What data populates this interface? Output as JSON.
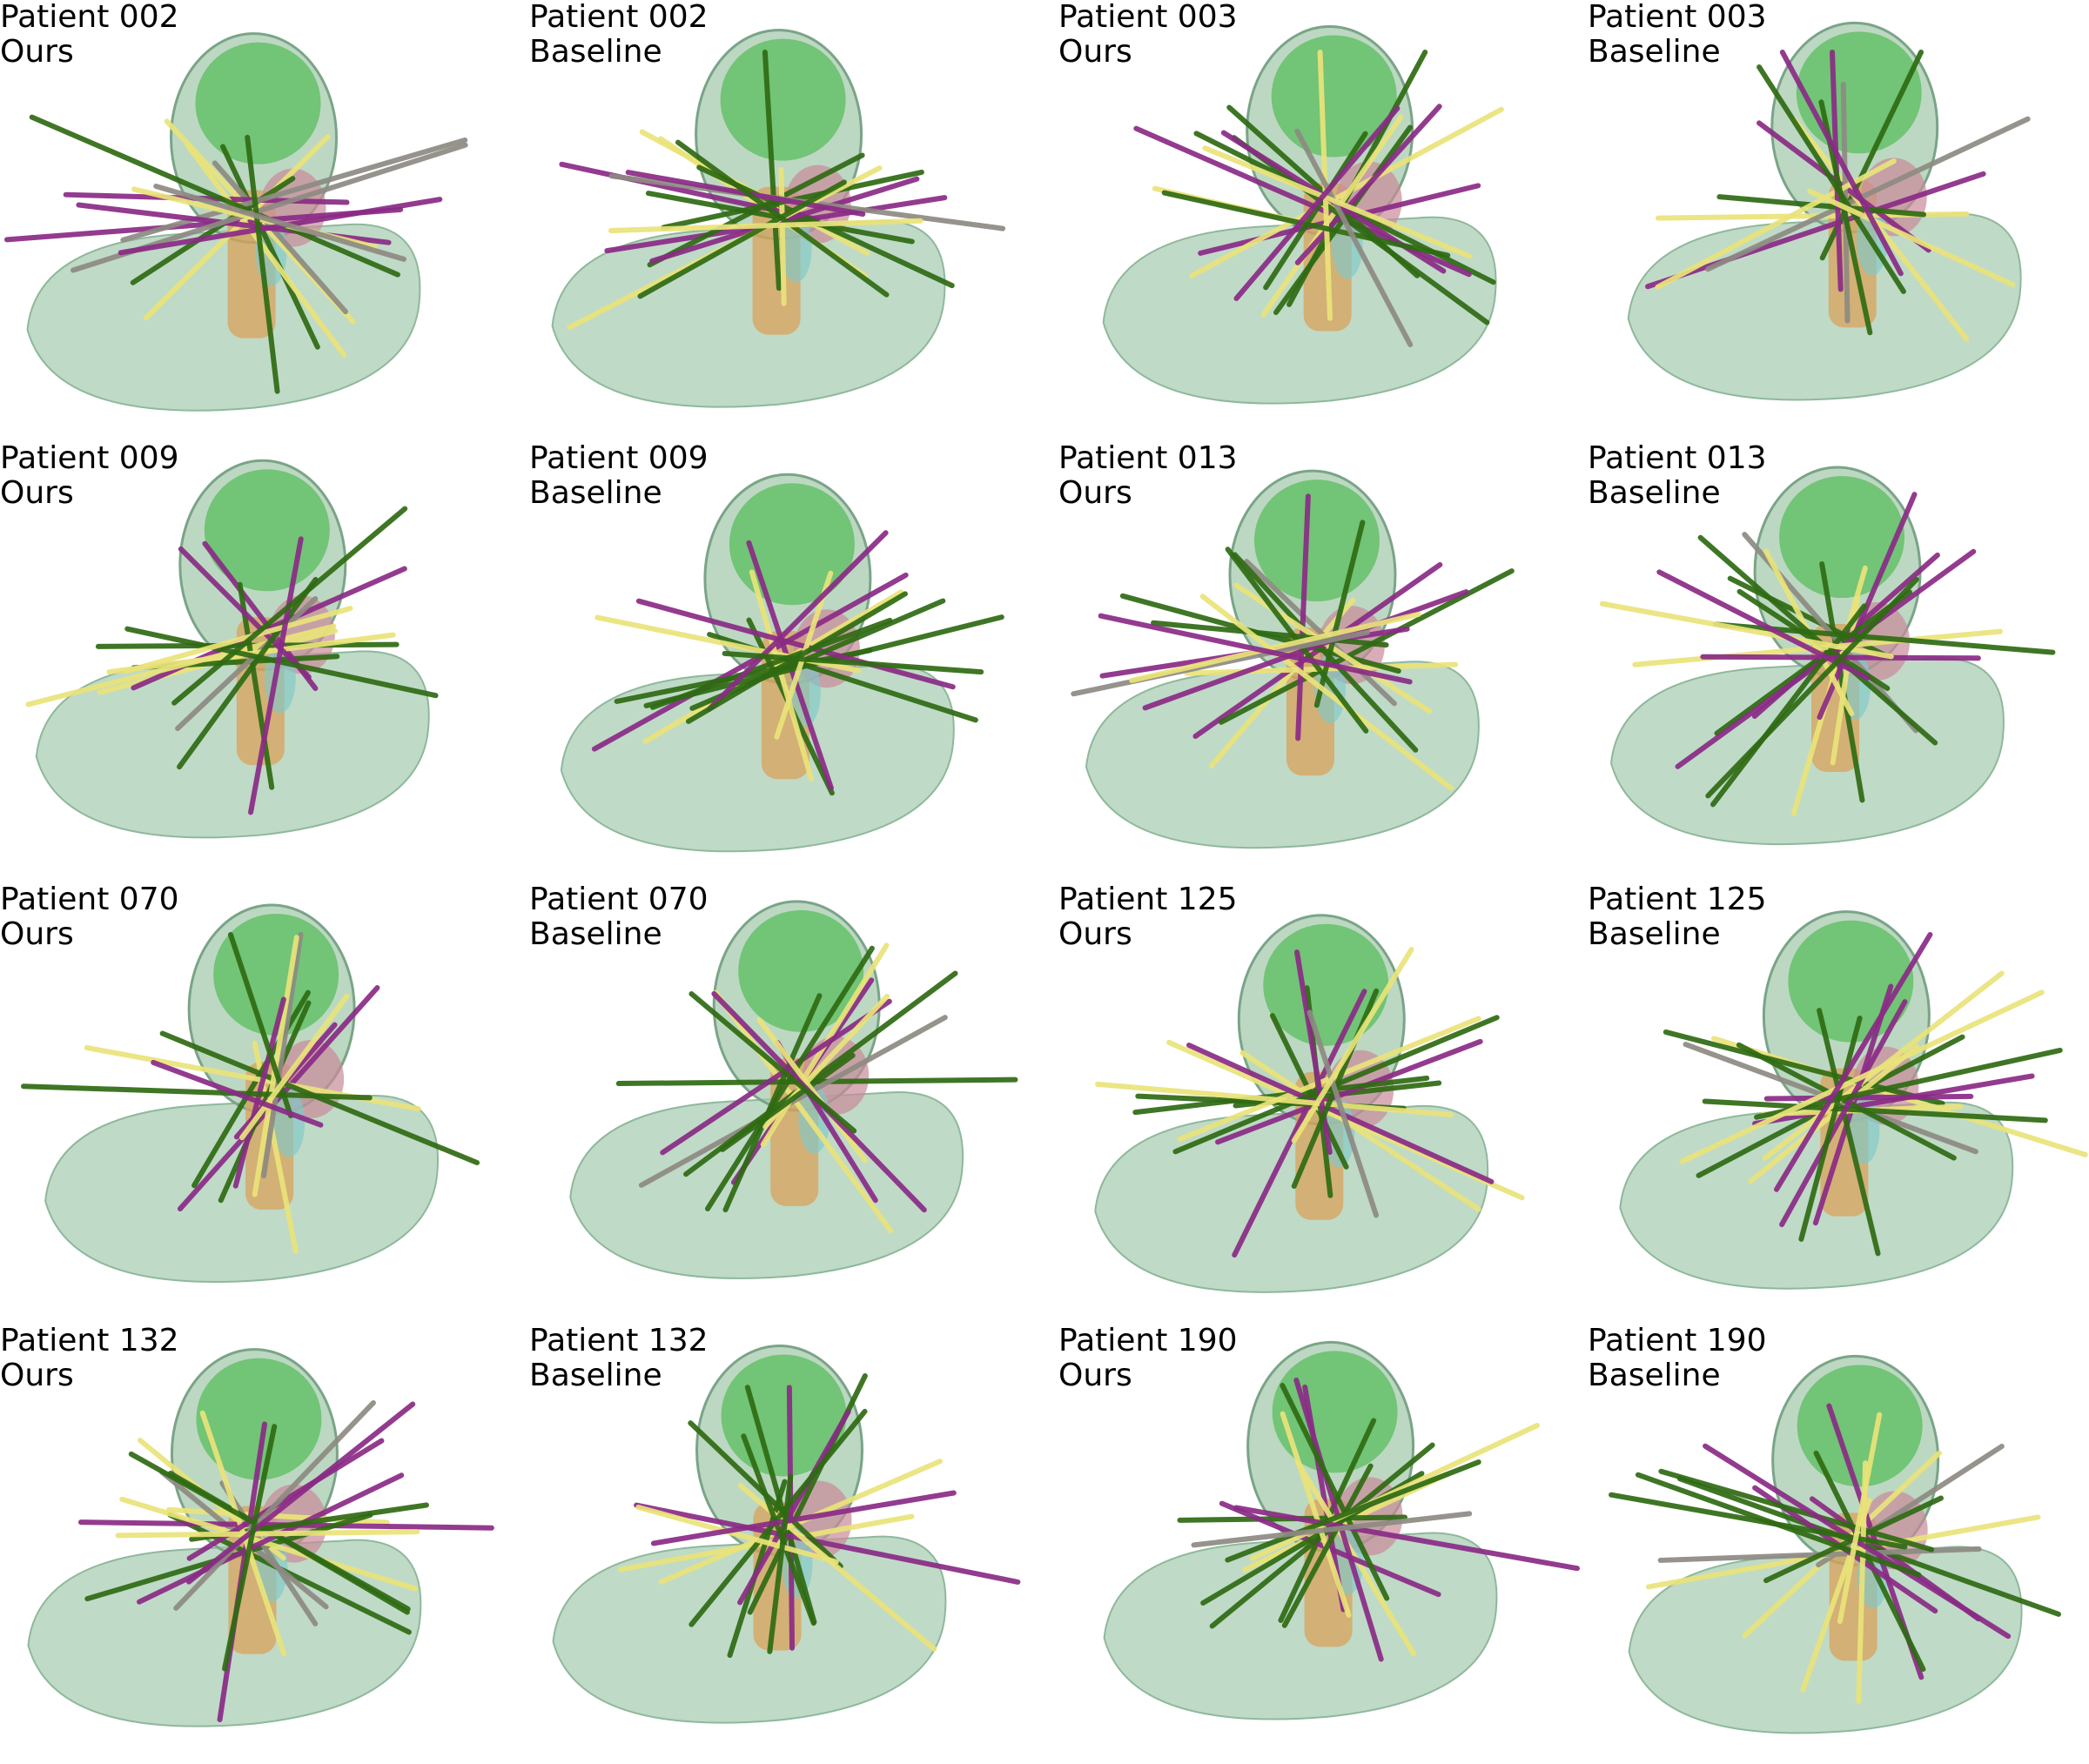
{
  "panels": [
    {
      "patient": "Patient 002",
      "method": "Ours"
    },
    {
      "patient": "Patient 002",
      "method": "Baseline"
    },
    {
      "patient": "Patient 003",
      "method": "Ours"
    },
    {
      "patient": "Patient 003",
      "method": "Baseline"
    },
    {
      "patient": "Patient 009",
      "method": "Ours"
    },
    {
      "patient": "Patient 009",
      "method": "Baseline"
    },
    {
      "patient": "Patient 013",
      "method": "Ours"
    },
    {
      "patient": "Patient 013",
      "method": "Baseline"
    },
    {
      "patient": "Patient 070",
      "method": "Ours"
    },
    {
      "patient": "Patient 070",
      "method": "Baseline"
    },
    {
      "patient": "Patient 125",
      "method": "Ours"
    },
    {
      "patient": "Patient 125",
      "method": "Baseline"
    },
    {
      "patient": "Patient 132",
      "method": "Ours"
    },
    {
      "patient": "Patient 132",
      "method": "Baseline"
    },
    {
      "patient": "Patient 190",
      "method": "Ours"
    },
    {
      "patient": "Patient 190",
      "method": "Baseline"
    }
  ],
  "colors": {
    "body": "#a9cdb4",
    "head_shell": "#9fc8a8",
    "brain": "#5fbf63",
    "spine": "#d9a25a",
    "organ_pink": "#c98a9a",
    "organ_cyan": "#7fc9c9",
    "beam_yellow": "#e9e37a",
    "beam_purple": "#8a2a86",
    "beam_green": "#2f6a12",
    "beam_gray": "#8d8a82"
  }
}
